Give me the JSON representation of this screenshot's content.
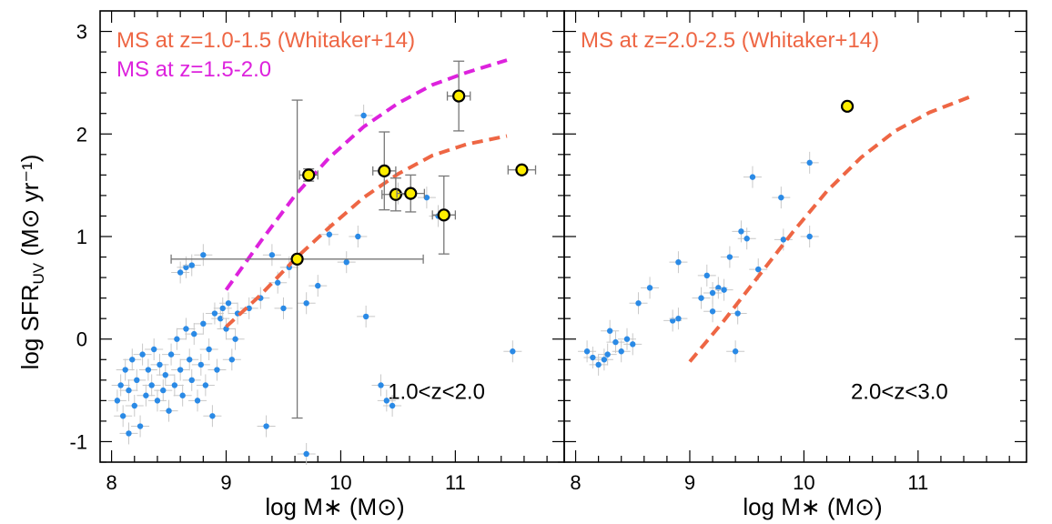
{
  "chart_data": [
    {
      "type": "scatter",
      "panel_label": "1.0<z<2.0",
      "xlabel": "log M∗ (M⊙)",
      "ylabel": "log SFR",
      "ylabel_sub": "UV",
      "ylabel_units": "(M⊙ yr⁻¹)",
      "xlim": [
        7.9,
        11.95
      ],
      "ylim": [
        -1.2,
        3.2
      ],
      "xticks": [
        "8",
        "9",
        "10",
        "11"
      ],
      "yticks": [
        "-1",
        "0",
        "1",
        "2",
        "3"
      ],
      "annotations": [
        {
          "text": "MS at z=1.0-1.5 (Whitaker+14)",
          "color": "#ee6644"
        },
        {
          "text": "MS at z=1.5-2.0",
          "color": "#dd22dd"
        }
      ],
      "series": [
        {
          "kind": "curve",
          "color": "#ee6644",
          "points": [
            [
              9.0,
              0.12
            ],
            [
              9.3,
              0.43
            ],
            [
              9.6,
              0.78
            ],
            [
              9.9,
              1.09
            ],
            [
              10.2,
              1.38
            ],
            [
              10.5,
              1.61
            ],
            [
              10.8,
              1.79
            ],
            [
              11.1,
              1.9
            ],
            [
              11.45,
              1.98
            ]
          ]
        },
        {
          "kind": "curve",
          "color": "#dd22dd",
          "points": [
            [
              9.0,
              0.48
            ],
            [
              9.3,
              0.95
            ],
            [
              9.6,
              1.4
            ],
            [
              9.9,
              1.77
            ],
            [
              10.2,
              2.07
            ],
            [
              10.5,
              2.3
            ],
            [
              10.8,
              2.48
            ],
            [
              11.1,
              2.6
            ],
            [
              11.45,
              2.72
            ]
          ]
        },
        {
          "kind": "points",
          "color": "#2a8ae6",
          "points": [
            [
              8.05,
              -0.6
            ],
            [
              8.08,
              -0.45
            ],
            [
              8.1,
              -0.75
            ],
            [
              8.12,
              -0.3
            ],
            [
              8.15,
              -0.5
            ],
            [
              8.18,
              -0.2
            ],
            [
              8.2,
              -0.65
            ],
            [
              8.22,
              -0.4
            ],
            [
              8.25,
              -0.85
            ],
            [
              8.27,
              -0.15
            ],
            [
              8.3,
              -0.55
            ],
            [
              8.32,
              -0.3
            ],
            [
              8.35,
              -0.45
            ],
            [
              8.37,
              -0.1
            ],
            [
              8.4,
              -0.6
            ],
            [
              8.42,
              -0.25
            ],
            [
              8.45,
              -0.5
            ],
            [
              8.47,
              -0.35
            ],
            [
              8.5,
              -0.7
            ],
            [
              8.52,
              -0.15
            ],
            [
              8.55,
              -0.45
            ],
            [
              8.57,
              0.0
            ],
            [
              8.6,
              -0.3
            ],
            [
              8.62,
              -0.55
            ],
            [
              8.65,
              0.1
            ],
            [
              8.68,
              -0.2
            ],
            [
              8.7,
              -0.4
            ],
            [
              8.72,
              0.05
            ],
            [
              8.75,
              -0.6
            ],
            [
              8.78,
              -0.25
            ],
            [
              8.8,
              0.15
            ],
            [
              8.82,
              -0.45
            ],
            [
              8.85,
              -0.1
            ],
            [
              8.88,
              -0.75
            ],
            [
              8.9,
              0.25
            ],
            [
              8.92,
              -0.3
            ],
            [
              8.95,
              0.2
            ],
            [
              8.97,
              0.3
            ],
            [
              9.0,
              0.1
            ],
            [
              9.02,
              0.35
            ],
            [
              9.05,
              -0.2
            ],
            [
              9.08,
              0.0
            ],
            [
              9.1,
              0.25
            ],
            [
              8.6,
              0.65
            ],
            [
              8.65,
              0.7
            ],
            [
              8.7,
              0.72
            ],
            [
              8.8,
              0.82
            ],
            [
              9.2,
              0.3
            ],
            [
              9.3,
              0.4
            ],
            [
              9.35,
              -0.85
            ],
            [
              9.4,
              0.82
            ],
            [
              9.45,
              0.55
            ],
            [
              9.5,
              0.3
            ],
            [
              9.55,
              0.7
            ],
            [
              9.7,
              0.35
            ],
            [
              9.8,
              0.52
            ],
            [
              9.9,
              1.02
            ],
            [
              10.05,
              0.75
            ],
            [
              10.15,
              1.0
            ],
            [
              10.2,
              2.18
            ],
            [
              10.22,
              0.22
            ],
            [
              10.35,
              -0.45
            ],
            [
              10.4,
              -0.6
            ],
            [
              10.45,
              -0.65
            ],
            [
              10.5,
              1.42
            ],
            [
              10.75,
              1.38
            ],
            [
              10.85,
              1.2
            ],
            [
              11.5,
              -0.12
            ],
            [
              9.7,
              -1.12
            ],
            [
              8.15,
              -0.92
            ]
          ]
        },
        {
          "kind": "highlighted",
          "color": "#ffee00",
          "stroke": "#000000",
          "points": [
            {
              "x": 9.72,
              "y": 1.6,
              "xerr": 0.08,
              "yerr": 0.06
            },
            {
              "x": 9.62,
              "y": 0.78,
              "xerr": 1.1,
              "yerr": 1.55
            },
            {
              "x": 10.38,
              "y": 1.64,
              "xerr": 0.1,
              "yerr": 0.38
            },
            {
              "x": 10.48,
              "y": 1.41,
              "xerr": 0.12,
              "yerr": 0.16
            },
            {
              "x": 10.61,
              "y": 1.42,
              "xerr": 0.12,
              "yerr": 0.18
            },
            {
              "x": 10.9,
              "y": 1.21,
              "xerr": 0.1,
              "yerr": 0.38
            },
            {
              "x": 11.03,
              "y": 2.37,
              "xerr": 0.1,
              "yerr": 0.34
            },
            {
              "x": 11.58,
              "y": 1.65,
              "xerr": 0.12,
              "yerr": 0.0
            }
          ]
        }
      ]
    },
    {
      "type": "scatter",
      "panel_label": "2.0<z<3.0",
      "xlabel": "log M∗ (M⊙)",
      "xlim": [
        7.9,
        11.95
      ],
      "ylim": [
        -1.2,
        3.2
      ],
      "xticks": [
        "8",
        "9",
        "10",
        "11"
      ],
      "annotations": [
        {
          "text": "MS at z=2.0-2.5 (Whitaker+14)",
          "color": "#ee6644"
        }
      ],
      "series": [
        {
          "kind": "curve",
          "color": "#ee6644",
          "points": [
            [
              9.0,
              -0.22
            ],
            [
              9.3,
              0.18
            ],
            [
              9.6,
              0.61
            ],
            [
              9.9,
              1.04
            ],
            [
              10.2,
              1.44
            ],
            [
              10.5,
              1.77
            ],
            [
              10.8,
              2.03
            ],
            [
              11.1,
              2.21
            ],
            [
              11.45,
              2.36
            ]
          ]
        },
        {
          "kind": "points",
          "color": "#2a8ae6",
          "points": [
            [
              8.1,
              -0.12
            ],
            [
              8.15,
              -0.18
            ],
            [
              8.2,
              -0.25
            ],
            [
              8.25,
              -0.2
            ],
            [
              8.28,
              -0.15
            ],
            [
              8.3,
              0.08
            ],
            [
              8.35,
              -0.03
            ],
            [
              8.4,
              -0.12
            ],
            [
              8.45,
              0.0
            ],
            [
              8.5,
              -0.05
            ],
            [
              8.55,
              0.35
            ],
            [
              8.65,
              0.5
            ],
            [
              8.85,
              0.18
            ],
            [
              8.9,
              0.2
            ],
            [
              8.9,
              0.75
            ],
            [
              9.1,
              0.4
            ],
            [
              9.15,
              0.62
            ],
            [
              9.2,
              0.45
            ],
            [
              9.25,
              0.5
            ],
            [
              9.3,
              0.48
            ],
            [
              9.35,
              0.8
            ],
            [
              9.4,
              -0.12
            ],
            [
              9.42,
              0.25
            ],
            [
              9.45,
              1.05
            ],
            [
              9.5,
              0.98
            ],
            [
              9.55,
              1.58
            ],
            [
              9.6,
              0.68
            ],
            [
              9.8,
              1.38
            ],
            [
              9.82,
              0.97
            ],
            [
              10.05,
              1.72
            ],
            [
              10.05,
              1.0
            ],
            [
              9.2,
              0.27
            ]
          ]
        },
        {
          "kind": "highlighted",
          "color": "#ffee00",
          "stroke": "#000000",
          "points": [
            {
              "x": 10.38,
              "y": 2.27,
              "xerr": 0.0,
              "yerr": 0.0
            }
          ]
        }
      ]
    }
  ]
}
